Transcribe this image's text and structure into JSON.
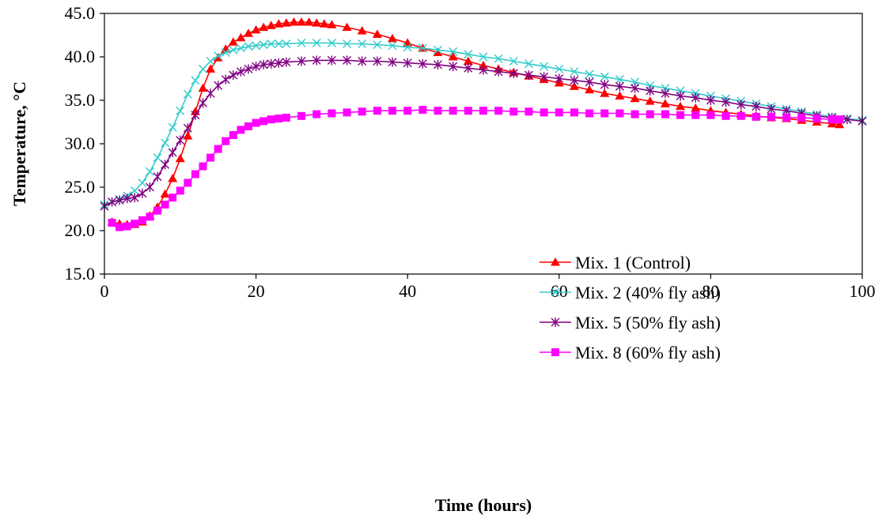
{
  "chart_data": {
    "type": "line",
    "title": "",
    "xlabel": "Time (hours)",
    "ylabel": "Temperature, °C",
    "xlim": [
      0,
      100
    ],
    "ylim": [
      15,
      45
    ],
    "x_ticks": [
      "0",
      "20",
      "40",
      "60",
      "80",
      "100"
    ],
    "y_ticks": [
      "15.0",
      "20.0",
      "25.0",
      "30.0",
      "35.0",
      "40.0",
      "45.0"
    ],
    "grid": false,
    "legend_position": "right",
    "series": [
      {
        "name": "Mix. 1 (Control)",
        "color": "#ff0000",
        "marker": "triangle",
        "points": [
          [
            1,
            21.0
          ],
          [
            2,
            20.8
          ],
          [
            3,
            20.7
          ],
          [
            4,
            20.7
          ],
          [
            5,
            21.0
          ],
          [
            6,
            21.7
          ],
          [
            7,
            22.7
          ],
          [
            8,
            24.2
          ],
          [
            9,
            26.0
          ],
          [
            10,
            28.3
          ],
          [
            11,
            30.9
          ],
          [
            12,
            33.7
          ],
          [
            13,
            36.4
          ],
          [
            14,
            38.6
          ],
          [
            15,
            39.9
          ],
          [
            16,
            40.9
          ],
          [
            17,
            41.7
          ],
          [
            18,
            42.2
          ],
          [
            19,
            42.7
          ],
          [
            20,
            43.1
          ],
          [
            21,
            43.4
          ],
          [
            22,
            43.6
          ],
          [
            23,
            43.8
          ],
          [
            24,
            43.9
          ],
          [
            25,
            44.0
          ],
          [
            26,
            44.0
          ],
          [
            27,
            44.0
          ],
          [
            28,
            43.9
          ],
          [
            29,
            43.8
          ],
          [
            30,
            43.7
          ],
          [
            32,
            43.4
          ],
          [
            34,
            43.0
          ],
          [
            36,
            42.6
          ],
          [
            38,
            42.1
          ],
          [
            40,
            41.6
          ],
          [
            42,
            41.0
          ],
          [
            44,
            40.5
          ],
          [
            46,
            40.0
          ],
          [
            48,
            39.5
          ],
          [
            50,
            39.0
          ],
          [
            52,
            38.6
          ],
          [
            54,
            38.2
          ],
          [
            56,
            37.8
          ],
          [
            58,
            37.4
          ],
          [
            60,
            37.0
          ],
          [
            62,
            36.6
          ],
          [
            64,
            36.2
          ],
          [
            66,
            35.8
          ],
          [
            68,
            35.5
          ],
          [
            70,
            35.2
          ],
          [
            72,
            34.9
          ],
          [
            74,
            34.6
          ],
          [
            76,
            34.3
          ],
          [
            78,
            34.1
          ],
          [
            80,
            33.8
          ],
          [
            82,
            33.6
          ],
          [
            84,
            33.4
          ],
          [
            86,
            33.2
          ],
          [
            88,
            33.0
          ],
          [
            90,
            32.9
          ],
          [
            92,
            32.7
          ],
          [
            94,
            32.5
          ],
          [
            96,
            32.3
          ],
          [
            97,
            32.2
          ]
        ]
      },
      {
        "name": "Mix. 2 (40% fly ash)",
        "color": "#33cccc",
        "marker": "x",
        "points": [
          [
            0,
            23.0
          ],
          [
            1,
            23.3
          ],
          [
            2,
            23.6
          ],
          [
            3,
            24.0
          ],
          [
            4,
            24.6
          ],
          [
            5,
            25.5
          ],
          [
            6,
            26.8
          ],
          [
            7,
            28.4
          ],
          [
            8,
            30.1
          ],
          [
            9,
            31.9
          ],
          [
            10,
            33.8
          ],
          [
            11,
            35.7
          ],
          [
            12,
            37.3
          ],
          [
            13,
            38.6
          ],
          [
            14,
            39.5
          ],
          [
            15,
            40.1
          ],
          [
            16,
            40.5
          ],
          [
            17,
            40.8
          ],
          [
            18,
            41.0
          ],
          [
            19,
            41.2
          ],
          [
            20,
            41.3
          ],
          [
            21,
            41.4
          ],
          [
            22,
            41.5
          ],
          [
            23,
            41.5
          ],
          [
            24,
            41.5
          ],
          [
            26,
            41.6
          ],
          [
            28,
            41.6
          ],
          [
            30,
            41.6
          ],
          [
            32,
            41.5
          ],
          [
            34,
            41.5
          ],
          [
            36,
            41.4
          ],
          [
            38,
            41.3
          ],
          [
            40,
            41.1
          ],
          [
            42,
            41.0
          ],
          [
            44,
            40.8
          ],
          [
            46,
            40.6
          ],
          [
            48,
            40.3
          ],
          [
            50,
            40.0
          ],
          [
            52,
            39.8
          ],
          [
            54,
            39.5
          ],
          [
            56,
            39.2
          ],
          [
            58,
            38.9
          ],
          [
            60,
            38.6
          ],
          [
            62,
            38.3
          ],
          [
            64,
            38.0
          ],
          [
            66,
            37.7
          ],
          [
            68,
            37.4
          ],
          [
            70,
            37.1
          ],
          [
            72,
            36.7
          ],
          [
            74,
            36.4
          ],
          [
            76,
            36.1
          ],
          [
            78,
            35.8
          ],
          [
            80,
            35.5
          ],
          [
            82,
            35.2
          ],
          [
            84,
            34.9
          ],
          [
            86,
            34.6
          ],
          [
            88,
            34.3
          ],
          [
            90,
            34.0
          ],
          [
            92,
            33.7
          ],
          [
            94,
            33.4
          ],
          [
            96,
            33.1
          ],
          [
            98,
            32.9
          ],
          [
            100,
            32.7
          ]
        ]
      },
      {
        "name": "Mix. 5 (50% fly ash)",
        "color": "#800080",
        "marker": "asterisk",
        "points": [
          [
            0,
            22.8
          ],
          [
            1,
            23.3
          ],
          [
            2,
            23.5
          ],
          [
            3,
            23.7
          ],
          [
            4,
            23.8
          ],
          [
            5,
            24.3
          ],
          [
            6,
            25.0
          ],
          [
            7,
            26.2
          ],
          [
            8,
            27.6
          ],
          [
            9,
            29.0
          ],
          [
            10,
            30.4
          ],
          [
            11,
            31.8
          ],
          [
            12,
            33.3
          ],
          [
            13,
            34.7
          ],
          [
            14,
            35.8
          ],
          [
            15,
            36.7
          ],
          [
            16,
            37.4
          ],
          [
            17,
            37.9
          ],
          [
            18,
            38.3
          ],
          [
            19,
            38.6
          ],
          [
            20,
            38.9
          ],
          [
            21,
            39.1
          ],
          [
            22,
            39.2
          ],
          [
            23,
            39.3
          ],
          [
            24,
            39.4
          ],
          [
            26,
            39.5
          ],
          [
            28,
            39.6
          ],
          [
            30,
            39.6
          ],
          [
            32,
            39.6
          ],
          [
            34,
            39.5
          ],
          [
            36,
            39.5
          ],
          [
            38,
            39.4
          ],
          [
            40,
            39.3
          ],
          [
            42,
            39.2
          ],
          [
            44,
            39.1
          ],
          [
            46,
            38.9
          ],
          [
            48,
            38.7
          ],
          [
            50,
            38.5
          ],
          [
            52,
            38.3
          ],
          [
            54,
            38.1
          ],
          [
            56,
            37.9
          ],
          [
            58,
            37.7
          ],
          [
            60,
            37.5
          ],
          [
            62,
            37.3
          ],
          [
            64,
            37.1
          ],
          [
            66,
            36.8
          ],
          [
            68,
            36.6
          ],
          [
            70,
            36.4
          ],
          [
            72,
            36.1
          ],
          [
            74,
            35.8
          ],
          [
            76,
            35.5
          ],
          [
            78,
            35.3
          ],
          [
            80,
            35.0
          ],
          [
            82,
            34.8
          ],
          [
            84,
            34.5
          ],
          [
            86,
            34.3
          ],
          [
            88,
            34.0
          ],
          [
            90,
            33.8
          ],
          [
            92,
            33.5
          ],
          [
            94,
            33.2
          ],
          [
            96,
            33.0
          ],
          [
            98,
            32.8
          ],
          [
            100,
            32.6
          ]
        ]
      },
      {
        "name": "Mix. 8 (60% fly ash)",
        "color": "#ff00ff",
        "marker": "square",
        "points": [
          [
            1,
            20.9
          ],
          [
            2,
            20.4
          ],
          [
            3,
            20.5
          ],
          [
            4,
            20.8
          ],
          [
            5,
            21.2
          ],
          [
            6,
            21.6
          ],
          [
            7,
            22.3
          ],
          [
            8,
            23.0
          ],
          [
            9,
            23.8
          ],
          [
            10,
            24.6
          ],
          [
            11,
            25.5
          ],
          [
            12,
            26.5
          ],
          [
            13,
            27.4
          ],
          [
            14,
            28.4
          ],
          [
            15,
            29.4
          ],
          [
            16,
            30.3
          ],
          [
            17,
            31.0
          ],
          [
            18,
            31.6
          ],
          [
            19,
            32.0
          ],
          [
            20,
            32.4
          ],
          [
            21,
            32.6
          ],
          [
            22,
            32.8
          ],
          [
            23,
            32.9
          ],
          [
            24,
            33.0
          ],
          [
            26,
            33.2
          ],
          [
            28,
            33.4
          ],
          [
            30,
            33.5
          ],
          [
            32,
            33.6
          ],
          [
            34,
            33.7
          ],
          [
            36,
            33.8
          ],
          [
            38,
            33.8
          ],
          [
            40,
            33.8
          ],
          [
            42,
            33.9
          ],
          [
            44,
            33.8
          ],
          [
            46,
            33.8
          ],
          [
            48,
            33.8
          ],
          [
            50,
            33.8
          ],
          [
            52,
            33.8
          ],
          [
            54,
            33.7
          ],
          [
            56,
            33.7
          ],
          [
            58,
            33.6
          ],
          [
            60,
            33.6
          ],
          [
            62,
            33.6
          ],
          [
            64,
            33.5
          ],
          [
            66,
            33.5
          ],
          [
            68,
            33.5
          ],
          [
            70,
            33.4
          ],
          [
            72,
            33.4
          ],
          [
            74,
            33.4
          ],
          [
            76,
            33.3
          ],
          [
            78,
            33.3
          ],
          [
            80,
            33.3
          ],
          [
            82,
            33.2
          ],
          [
            84,
            33.2
          ],
          [
            86,
            33.1
          ],
          [
            88,
            33.1
          ],
          [
            90,
            33.0
          ],
          [
            92,
            33.0
          ],
          [
            94,
            32.9
          ],
          [
            96,
            32.8
          ],
          [
            97,
            32.8
          ]
        ]
      }
    ]
  }
}
